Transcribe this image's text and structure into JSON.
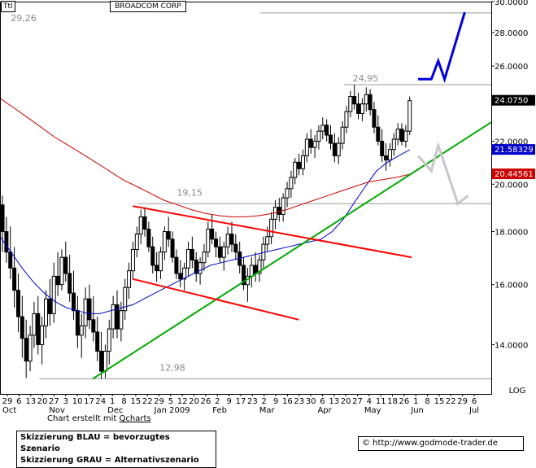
{
  "header": {
    "ticker": "Ttl",
    "company": "BROADCOM CORP"
  },
  "chart_data": {
    "type": "candlestick",
    "title": "BROADCOM CORP",
    "y_scale": "log",
    "y_scale_label": "LOG",
    "ylim": [
      12.55,
      30.0
    ],
    "y_ticks": [
      "30.0000",
      "28.0000",
      "26.0000",
      "24.0000",
      "22.0000",
      "20.0000",
      "18.0000",
      "16.0000",
      "14.0000"
    ],
    "x_ticks": [
      "29",
      "6",
      "13",
      "20",
      "27",
      "3",
      "10",
      "17",
      "24",
      "1",
      "8",
      "15",
      "22",
      "29",
      "5",
      "12",
      "20",
      "26",
      "2",
      "9",
      "17",
      "23",
      "2",
      "9",
      "16",
      "23",
      "30",
      "6",
      "13",
      "20",
      "27",
      "4",
      "11",
      "18",
      "26",
      "1",
      "8",
      "15",
      "22",
      "29",
      "6"
    ],
    "month_labels": [
      "Oct",
      "Nov",
      "Dec",
      "Jan 2009",
      "Feb",
      "Mar",
      "Apr",
      "May",
      "Jun",
      "Jul"
    ],
    "price_badges": [
      {
        "label": "24.0750",
        "value": 24.075,
        "color": "#000000",
        "text_color": "#ffffff"
      },
      {
        "label": "21.58329",
        "value": 21.58329,
        "color": "#0000cc",
        "text_color": "#ffffff"
      },
      {
        "label": "20.44561",
        "value": 20.44561,
        "color": "#cc0000",
        "text_color": "#ffffff"
      }
    ],
    "levels": [
      {
        "label": "29,26",
        "value": 29.26
      },
      {
        "label": "24,95",
        "value": 24.95
      },
      {
        "label": "19,15",
        "value": 19.15
      },
      {
        "label": "12,98",
        "value": 12.98
      }
    ],
    "candles_ohlc": [
      [
        19.1,
        19.5,
        17.2,
        18.0
      ],
      [
        18.0,
        18.6,
        16.8,
        17.2
      ],
      [
        17.2,
        18.2,
        16.2,
        16.6
      ],
      [
        16.6,
        17.4,
        15.2,
        15.8
      ],
      [
        15.8,
        16.4,
        14.4,
        14.9
      ],
      [
        14.9,
        15.6,
        13.6,
        14.2
      ],
      [
        14.2,
        14.8,
        13.0,
        13.5
      ],
      [
        13.5,
        14.6,
        13.2,
        14.3
      ],
      [
        14.3,
        15.4,
        13.9,
        15.0
      ],
      [
        15.0,
        15.6,
        13.7,
        14.0
      ],
      [
        14.0,
        14.9,
        13.4,
        14.6
      ],
      [
        14.6,
        15.8,
        14.2,
        15.5
      ],
      [
        15.5,
        16.2,
        14.6,
        15.0
      ],
      [
        15.0,
        16.8,
        14.7,
        16.3
      ],
      [
        16.3,
        17.2,
        15.6,
        16.0
      ],
      [
        16.0,
        17.3,
        15.8,
        17.0
      ],
      [
        17.0,
        17.6,
        16.1,
        16.4
      ],
      [
        16.4,
        17.1,
        15.4,
        15.7
      ],
      [
        15.7,
        16.5,
        14.8,
        15.1
      ],
      [
        15.1,
        15.6,
        13.9,
        14.3
      ],
      [
        14.3,
        15.0,
        13.6,
        14.6
      ],
      [
        14.6,
        15.9,
        14.2,
        15.5
      ],
      [
        15.5,
        16.0,
        14.5,
        14.8
      ],
      [
        14.8,
        15.6,
        14.1,
        14.4
      ],
      [
        14.4,
        14.9,
        13.5,
        13.8
      ],
      [
        13.8,
        14.4,
        12.98,
        13.2
      ],
      [
        13.2,
        14.0,
        13.0,
        13.8
      ],
      [
        13.8,
        14.8,
        13.4,
        14.5
      ],
      [
        14.5,
        15.6,
        14.2,
        15.3
      ],
      [
        15.3,
        15.8,
        14.2,
        14.5
      ],
      [
        14.5,
        15.4,
        14.1,
        15.1
      ],
      [
        15.1,
        16.2,
        14.8,
        15.9
      ],
      [
        15.9,
        16.8,
        15.5,
        16.5
      ],
      [
        16.5,
        17.6,
        16.2,
        17.3
      ],
      [
        17.3,
        18.2,
        17.0,
        17.9
      ],
      [
        17.9,
        18.9,
        17.5,
        18.6
      ],
      [
        18.6,
        19.0,
        17.8,
        18.1
      ],
      [
        18.1,
        18.4,
        17.2,
        17.4
      ],
      [
        17.4,
        17.8,
        16.4,
        16.7
      ],
      [
        16.7,
        17.2,
        16.1,
        16.5
      ],
      [
        16.5,
        17.4,
        16.2,
        17.2
      ],
      [
        17.2,
        18.2,
        16.9,
        18.0
      ],
      [
        18.0,
        18.6,
        17.4,
        17.7
      ],
      [
        17.7,
        18.0,
        16.8,
        17.0
      ],
      [
        17.0,
        17.3,
        16.2,
        16.4
      ],
      [
        16.4,
        16.9,
        15.9,
        16.2
      ],
      [
        16.2,
        16.8,
        15.8,
        16.6
      ],
      [
        16.6,
        17.6,
        16.3,
        17.3
      ],
      [
        17.3,
        17.8,
        16.6,
        16.9
      ],
      [
        16.9,
        17.2,
        16.1,
        16.4
      ],
      [
        16.4,
        17.0,
        16.0,
        16.8
      ],
      [
        16.8,
        17.5,
        16.5,
        17.2
      ],
      [
        17.2,
        18.4,
        17.0,
        18.1
      ],
      [
        18.1,
        18.7,
        17.5,
        17.7
      ],
      [
        17.7,
        18.0,
        17.0,
        17.4
      ],
      [
        17.4,
        17.8,
        16.8,
        17.0
      ],
      [
        17.0,
        17.6,
        16.5,
        17.4
      ],
      [
        17.4,
        18.2,
        17.1,
        17.9
      ],
      [
        17.9,
        18.4,
        17.2,
        17.5
      ],
      [
        17.5,
        17.9,
        16.9,
        17.2
      ],
      [
        17.2,
        17.6,
        16.4,
        16.7
      ],
      [
        16.7,
        17.0,
        15.8,
        16.0
      ],
      [
        16.0,
        16.6,
        15.4,
        16.3
      ],
      [
        16.3,
        17.0,
        15.9,
        16.7
      ],
      [
        16.7,
        17.2,
        16.1,
        16.4
      ],
      [
        16.4,
        17.1,
        16.1,
        16.9
      ],
      [
        16.9,
        17.8,
        16.6,
        17.5
      ],
      [
        17.5,
        18.2,
        17.2,
        17.8
      ],
      [
        17.8,
        18.8,
        17.5,
        18.5
      ],
      [
        18.5,
        19.3,
        18.1,
        19.0
      ],
      [
        19.0,
        19.4,
        18.4,
        18.7
      ],
      [
        18.7,
        19.6,
        18.4,
        19.4
      ],
      [
        19.4,
        20.1,
        19.0,
        19.8
      ],
      [
        19.8,
        20.6,
        19.4,
        20.3
      ],
      [
        20.3,
        21.2,
        20.0,
        21.0
      ],
      [
        21.0,
        21.4,
        20.4,
        20.7
      ],
      [
        20.7,
        21.6,
        20.4,
        21.3
      ],
      [
        21.3,
        22.4,
        21.0,
        22.1
      ],
      [
        22.1,
        22.6,
        21.4,
        21.7
      ],
      [
        21.7,
        22.3,
        21.2,
        22.0
      ],
      [
        22.0,
        22.8,
        21.6,
        22.5
      ],
      [
        22.5,
        23.2,
        22.1,
        22.8
      ],
      [
        22.8,
        23.1,
        22.0,
        22.3
      ],
      [
        22.3,
        22.8,
        21.6,
        21.9
      ],
      [
        21.9,
        22.4,
        21.0,
        21.3
      ],
      [
        21.3,
        22.2,
        20.9,
        21.9
      ],
      [
        21.9,
        23.0,
        21.6,
        22.7
      ],
      [
        22.7,
        23.8,
        22.4,
        23.5
      ],
      [
        23.5,
        24.6,
        23.2,
        24.3
      ],
      [
        24.3,
        24.95,
        23.6,
        23.9
      ],
      [
        23.9,
        24.5,
        23.1,
        23.4
      ],
      [
        23.4,
        24.2,
        23.0,
        23.9
      ],
      [
        23.9,
        24.8,
        23.5,
        24.4
      ],
      [
        24.4,
        24.7,
        23.3,
        23.6
      ],
      [
        23.6,
        24.0,
        22.4,
        22.7
      ],
      [
        22.7,
        23.3,
        21.8,
        22.0
      ],
      [
        22.0,
        22.6,
        21.0,
        21.3
      ],
      [
        21.3,
        21.9,
        20.6,
        21.1
      ],
      [
        21.1,
        21.9,
        20.8,
        21.6
      ],
      [
        21.6,
        22.4,
        21.3,
        22.1
      ],
      [
        22.1,
        22.9,
        21.8,
        22.6
      ],
      [
        22.6,
        22.9,
        21.8,
        22.0
      ],
      [
        22.0,
        22.8,
        21.7,
        22.5
      ],
      [
        22.5,
        24.3,
        22.3,
        24.075
      ]
    ],
    "sma_blue": [
      17.8,
      17.2,
      16.6,
      16.1,
      15.7,
      15.4,
      15.2,
      15.1,
      15.0,
      15.0,
      15.1,
      15.2,
      15.3,
      15.5,
      15.7,
      15.9,
      16.1,
      16.3,
      16.5,
      16.7,
      16.8,
      16.9,
      17.0,
      17.1,
      17.2,
      17.3,
      17.4,
      17.5,
      17.6,
      17.7,
      18.0,
      18.5,
      19.2,
      19.9,
      20.6,
      21.0,
      21.3,
      21.58329
    ],
    "sma_red": [
      24.2,
      23.7,
      23.2,
      22.7,
      22.2,
      21.8,
      21.4,
      21.0,
      20.6,
      20.2,
      19.9,
      19.6,
      19.3,
      19.1,
      18.9,
      18.75,
      18.65,
      18.6,
      18.6,
      18.65,
      18.75,
      18.9,
      19.1,
      19.3,
      19.5,
      19.7,
      19.9,
      20.1,
      20.2,
      20.3,
      20.44561
    ],
    "trendlines": [
      {
        "color": "#00aa00",
        "from": [
          0.1891,
          12.98
        ],
        "to": [
          1.0,
          22.95
        ]
      },
      {
        "color": "#ff0000",
        "from": [
          0.2703,
          19.05
        ],
        "to": [
          0.8378,
          17.0
        ]
      },
      {
        "color": "#ff0000",
        "from": [
          0.2703,
          16.2
        ],
        "to": [
          0.6081,
          14.8
        ]
      }
    ],
    "scenario_blue": [
      [
        0.851,
        25.25
      ],
      [
        0.878,
        25.25
      ],
      [
        0.892,
        26.3
      ],
      [
        0.905,
        25.25
      ],
      [
        0.946,
        29.3
      ]
    ],
    "scenario_grey": [
      [
        0.851,
        21.3
      ],
      [
        0.878,
        20.6
      ],
      [
        0.892,
        21.8
      ],
      [
        0.932,
        19.15
      ],
      [
        0.953,
        19.5
      ]
    ]
  },
  "footer": {
    "credit_prefix": "Chart erstellt mit",
    "credit_link": "Qcharts",
    "legend_blue": "Skizzierung BLAU = bevorzugtes Szenario",
    "legend_grey": "Skizzierung GRAU = Alternativszenario",
    "url": "© http://www.godmode-trader.de"
  }
}
